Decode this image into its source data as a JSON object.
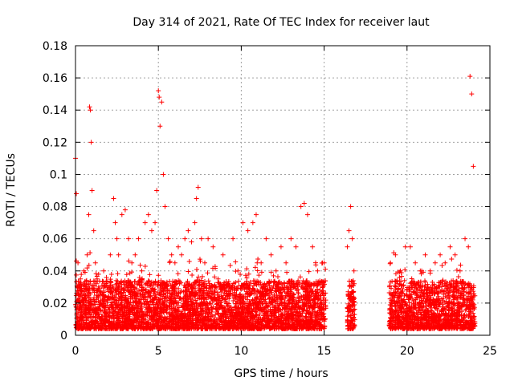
{
  "chart_data": {
    "type": "scatter",
    "title": "Day 314 of 2021, Rate Of TEC Index for receiver laut",
    "xlabel": "GPS time / hours",
    "ylabel": "ROTI / TECUs",
    "xlim": [
      0,
      25
    ],
    "ylim": [
      0,
      0.18
    ],
    "xticks": [
      0,
      5,
      10,
      15,
      20,
      25
    ],
    "xtick_labels": [
      "0",
      "5",
      "10",
      "15",
      "20",
      "25"
    ],
    "yticks": [
      0,
      0.02,
      0.04,
      0.06,
      0.08,
      0.1,
      0.12,
      0.14,
      0.16,
      0.18
    ],
    "ytick_labels": [
      "0",
      "0.02",
      "0.04",
      "0.06",
      "0.08",
      "0.1",
      "0.12",
      "0.14",
      "0.16",
      "0.18"
    ],
    "grid": true,
    "marker": "+",
    "color": "#ff0000",
    "series": [
      {
        "x": [
          0.0,
          0.05,
          0.1,
          0.15,
          0.2,
          0.3,
          0.4,
          0.5,
          0.6,
          0.7,
          0.8,
          0.85,
          0.9,
          0.95,
          1.0,
          1.1,
          1.2,
          1.3,
          1.4,
          1.5,
          1.7,
          1.9,
          2.1,
          2.3,
          2.4,
          2.5,
          2.6,
          2.8,
          3.0,
          3.2,
          3.4,
          3.6,
          3.8,
          4.0,
          4.2,
          4.4,
          4.6,
          4.8,
          4.9,
          5.0,
          5.05,
          5.1,
          5.2,
          5.3,
          5.4,
          5.6,
          5.8,
          6.0,
          6.2,
          6.4,
          6.6,
          6.8,
          7.0,
          7.2,
          7.3,
          7.4,
          7.6,
          7.8,
          8.0,
          8.3,
          8.6,
          8.9,
          9.2,
          9.5,
          9.8,
          10.1,
          10.4,
          10.7,
          10.9,
          11.2,
          11.5,
          11.8,
          12.1,
          12.4,
          12.7,
          13.0,
          13.3,
          13.6,
          13.8,
          14.0,
          14.3,
          14.6,
          14.9,
          15.0,
          16.4,
          16.5,
          16.6,
          16.7,
          16.8,
          19.0,
          19.3,
          19.6,
          19.9,
          20.2,
          20.5,
          20.8,
          21.1,
          21.4,
          21.7,
          22.0,
          22.3,
          22.6,
          22.9,
          23.2,
          23.5,
          23.7,
          23.8,
          23.9,
          24.0
        ],
        "y": [
          0.11,
          0.088,
          0.03,
          0.045,
          0.02,
          0.035,
          0.028,
          0.04,
          0.025,
          0.05,
          0.075,
          0.142,
          0.14,
          0.12,
          0.09,
          0.065,
          0.045,
          0.035,
          0.03,
          0.025,
          0.04,
          0.03,
          0.05,
          0.085,
          0.07,
          0.06,
          0.05,
          0.075,
          0.078,
          0.06,
          0.045,
          0.05,
          0.06,
          0.04,
          0.07,
          0.075,
          0.065,
          0.07,
          0.09,
          0.152,
          0.148,
          0.13,
          0.145,
          0.1,
          0.08,
          0.06,
          0.05,
          0.045,
          0.055,
          0.05,
          0.06,
          0.065,
          0.058,
          0.07,
          0.085,
          0.092,
          0.06,
          0.045,
          0.06,
          0.055,
          0.035,
          0.05,
          0.03,
          0.06,
          0.04,
          0.07,
          0.065,
          0.07,
          0.075,
          0.045,
          0.06,
          0.05,
          0.04,
          0.055,
          0.045,
          0.06,
          0.055,
          0.08,
          0.082,
          0.075,
          0.055,
          0.04,
          0.045,
          0.045,
          0.055,
          0.065,
          0.08,
          0.06,
          0.04,
          0.045,
          0.05,
          0.04,
          0.055,
          0.055,
          0.045,
          0.04,
          0.05,
          0.04,
          0.045,
          0.05,
          0.045,
          0.055,
          0.05,
          0.04,
          0.06,
          0.055,
          0.161,
          0.15,
          0.105
        ]
      }
    ],
    "segments": [
      {
        "from": 0.0,
        "to": 15.1
      },
      {
        "from": 16.4,
        "to": 16.85
      },
      {
        "from": 18.9,
        "to": 24.1
      }
    ]
  }
}
